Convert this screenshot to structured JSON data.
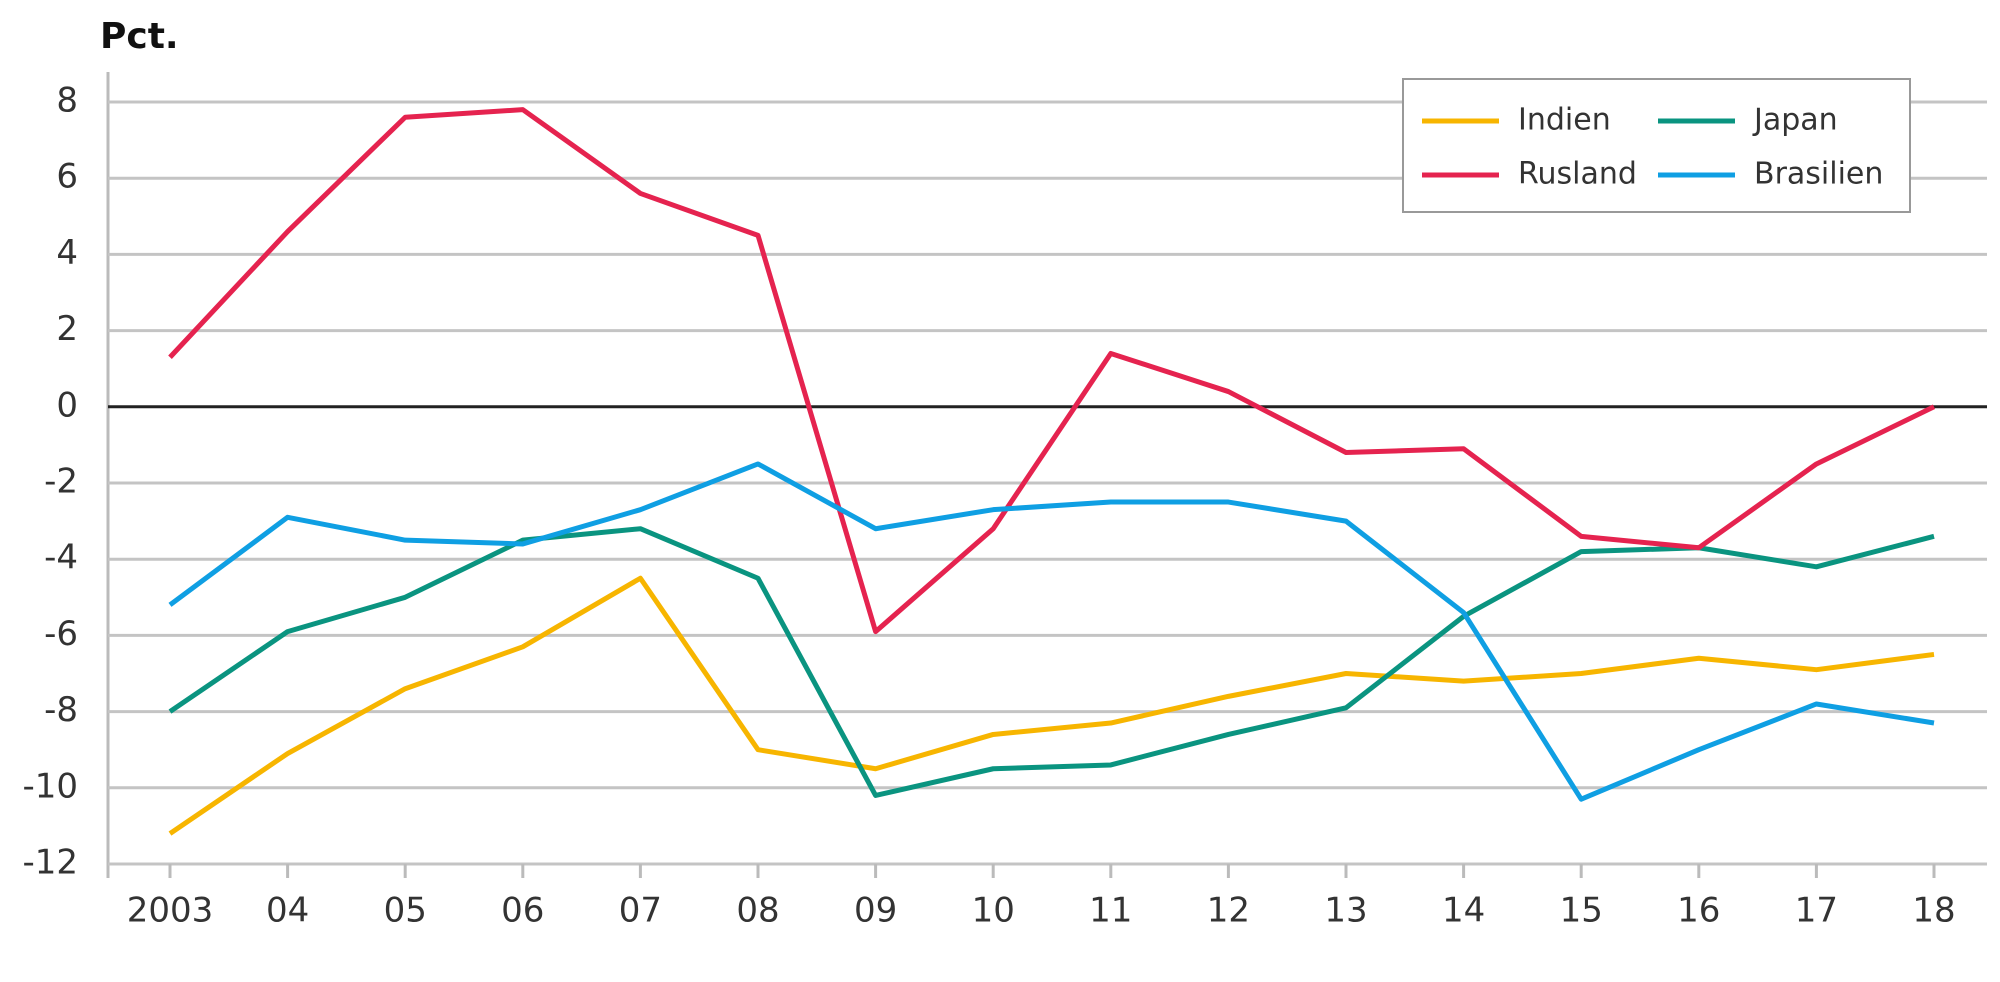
{
  "chart_data": {
    "type": "line",
    "title": "Pct.",
    "categories": [
      "2003",
      "04",
      "05",
      "06",
      "07",
      "08",
      "09",
      "10",
      "11",
      "12",
      "13",
      "14",
      "15",
      "16",
      "17",
      "18"
    ],
    "series": [
      {
        "name": "Indien",
        "color": "#f7b500",
        "values": [
          -11.2,
          -9.1,
          -7.4,
          -6.3,
          -4.5,
          -9.0,
          -9.5,
          -8.6,
          -8.3,
          -7.6,
          -7.0,
          -7.2,
          -7.0,
          -6.6,
          -6.9,
          -6.5
        ]
      },
      {
        "name": "Japan",
        "color": "#0a9480",
        "values": [
          -8.0,
          -5.9,
          -5.0,
          -3.5,
          -3.2,
          -4.5,
          -10.2,
          -9.5,
          -9.4,
          -8.6,
          -7.9,
          -5.5,
          -3.8,
          -3.7,
          -4.2,
          -3.4
        ]
      },
      {
        "name": "Rusland",
        "color": "#e5234f",
        "values": [
          1.3,
          4.6,
          7.6,
          7.8,
          5.6,
          4.5,
          -5.9,
          -3.2,
          1.4,
          0.4,
          -1.2,
          -1.1,
          -3.4,
          -3.7,
          -1.5,
          0.0
        ]
      },
      {
        "name": "Brasilien",
        "color": "#0f9fe3",
        "values": [
          -5.2,
          -2.9,
          -3.5,
          -3.6,
          -2.7,
          -1.5,
          -3.2,
          -2.7,
          -2.5,
          -2.5,
          -3.0,
          -5.4,
          -10.3,
          -9.0,
          -7.8,
          -8.3
        ]
      }
    ],
    "ylim": [
      -12,
      8
    ],
    "yticks": [
      -12,
      -10,
      -8,
      -6,
      -4,
      -2,
      0,
      2,
      4,
      6,
      8
    ],
    "grid": true,
    "legend": "upper right"
  }
}
